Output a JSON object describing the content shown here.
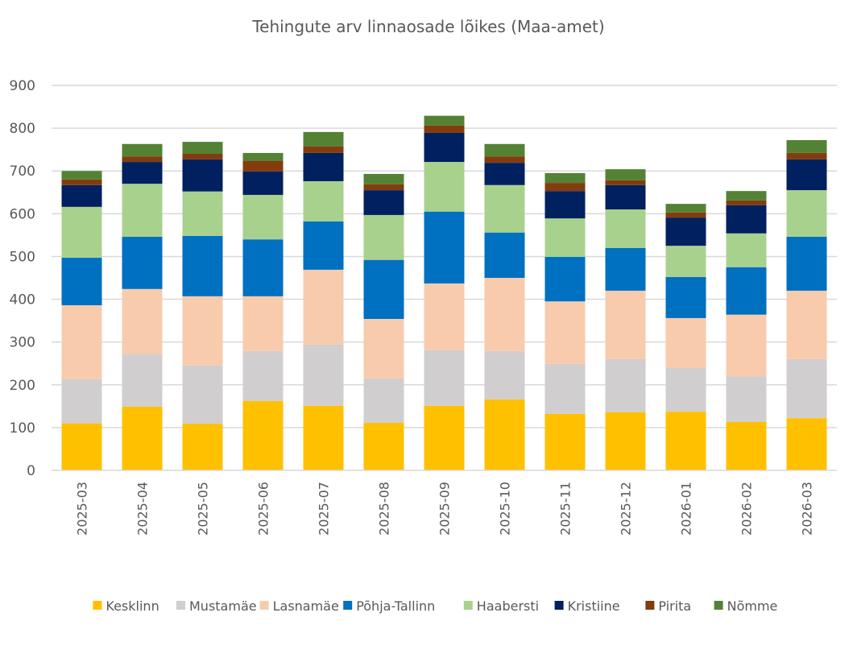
{
  "chart_data": {
    "type": "bar",
    "stacked": true,
    "title": "Tehingute arv linnaosade lõikes (Maa-amet)",
    "xlabel": "",
    "ylabel": "",
    "ylim": [
      0,
      900
    ],
    "yticks": [
      0,
      100,
      200,
      300,
      400,
      500,
      600,
      700,
      800,
      900
    ],
    "ytick_labels": [
      "0",
      "100",
      "200",
      "300",
      "400",
      "500",
      "600",
      "700",
      "800",
      "900"
    ],
    "grid": true,
    "legend_position": "bottom",
    "categories": [
      "2025-03",
      "2025-04",
      "2025-05",
      "2025-06",
      "2025-07",
      "2025-08",
      "2025-09",
      "2025-10",
      "2025-11",
      "2025-12",
      "2026-01",
      "2026-02",
      "2026-03"
    ],
    "series": [
      {
        "name": "Kesklinn",
        "color": "#FFC000",
        "values": [
          110,
          149,
          109,
          162,
          151,
          111,
          151,
          166,
          132,
          136,
          137,
          113,
          122
        ]
      },
      {
        "name": "Mustamäe",
        "color": "#D0CECE",
        "values": [
          103,
          122,
          136,
          117,
          143,
          104,
          130,
          113,
          117,
          124,
          102,
          107,
          138
        ]
      },
      {
        "name": "Lasnamäe",
        "color": "#F8CBAD",
        "values": [
          173,
          153,
          162,
          128,
          175,
          139,
          156,
          171,
          146,
          160,
          117,
          144,
          160
        ]
      },
      {
        "name": "Põhja-Tallinn",
        "color": "#0070C0",
        "values": [
          111,
          122,
          141,
          133,
          113,
          138,
          168,
          106,
          104,
          100,
          96,
          111,
          126
        ]
      },
      {
        "name": "Haabersti",
        "color": "#A9D18E",
        "values": [
          119,
          124,
          104,
          104,
          94,
          105,
          116,
          111,
          90,
          90,
          73,
          79,
          109
        ]
      },
      {
        "name": "Kristiine",
        "color": "#002060",
        "values": [
          51,
          51,
          75,
          55,
          66,
          58,
          68,
          52,
          64,
          57,
          66,
          66,
          72
        ]
      },
      {
        "name": "Pirita",
        "color": "#843C0C",
        "values": [
          13,
          13,
          13,
          24,
          15,
          14,
          17,
          15,
          19,
          11,
          12,
          11,
          15
        ]
      },
      {
        "name": "Nõmme",
        "color": "#548235",
        "values": [
          20,
          29,
          28,
          19,
          34,
          24,
          23,
          29,
          23,
          26,
          20,
          22,
          30
        ]
      }
    ]
  }
}
